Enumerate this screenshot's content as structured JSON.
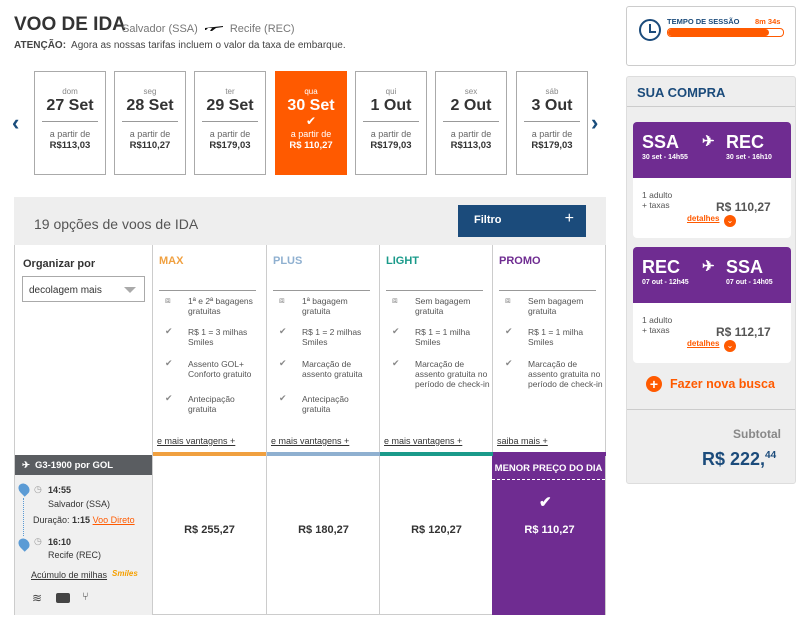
{
  "header": {
    "title": "VOO DE IDA",
    "origin": "Salvador (SSA)",
    "destination": "Recife (REC)",
    "notice_label": "ATENÇÃO:",
    "notice_text": "Agora as nossas tarifas incluem o valor da taxa de embarque."
  },
  "dates": [
    {
      "weekday": "dom",
      "date": "27 Set",
      "from": "a partir de",
      "price": "R$113,03"
    },
    {
      "weekday": "seg",
      "date": "28 Set",
      "from": "a partir de",
      "price": "R$110,27"
    },
    {
      "weekday": "ter",
      "date": "29 Set",
      "from": "a partir de",
      "price": "R$179,03"
    },
    {
      "weekday": "qua",
      "date": "30 Set",
      "from": "a partir de",
      "price": "R$ 110,27"
    },
    {
      "weekday": "qui",
      "date": "1 Out",
      "from": "a partir de",
      "price": "R$179,03"
    },
    {
      "weekday": "sex",
      "date": "2 Out",
      "from": "a partir de",
      "price": "R$113,03"
    },
    {
      "weekday": "sáb",
      "date": "3 Out",
      "from": "a partir de",
      "price": "R$179,03"
    }
  ],
  "options": {
    "count_text": "19 opções de voos de IDA",
    "filter_label": "Filtro",
    "filter_icon": "+"
  },
  "sort": {
    "label": "Organizar por",
    "value": "decolagem mais"
  },
  "fares": [
    {
      "name": "MAX",
      "color": "#f0a040",
      "features": [
        "1ª e 2ª bagagens gratuitas",
        "R$ 1 = 3 milhas Smiles",
        "Assento GOL+ Conforto gratuito",
        "Antecipação gratuita"
      ],
      "more": "e mais vantagens +",
      "price": "R$ 255,27"
    },
    {
      "name": "PLUS",
      "color": "#8fb0d0",
      "features": [
        "1ª bagagem gratuita",
        "R$ 1 = 2 milhas Smiles",
        "Marcação de assento gratuita",
        "Antecipação gratuita"
      ],
      "more": "e mais vantagens +",
      "price": "R$ 180,27"
    },
    {
      "name": "LIGHT",
      "color": "#1a9a8a",
      "features": [
        "Sem bagagem gratuita",
        "R$ 1 = 1 milha Smiles",
        "Marcação de assento gratuita no período de check-in"
      ],
      "more": "e mais vantagens +",
      "price": "R$ 120,27"
    },
    {
      "name": "PROMO",
      "color": "#6f2c91",
      "features": [
        "Sem bagagem gratuita",
        "R$ 1 = 1 milha Smiles",
        "Marcação de assento gratuita no período de check-in"
      ],
      "more": "saiba mais +",
      "price": "R$ 110,27",
      "badge": "MENOR PREÇO DO DIA"
    }
  ],
  "flight": {
    "header": "G3-1900 por GOL",
    "dep_time": "14:55",
    "dep_city": "Salvador (SSA)",
    "duration_label": "Duração:",
    "duration": "1:15",
    "type": "Voo Direto",
    "arr_time": "16:10",
    "arr_city": "Recife (REC)",
    "miles_link": "Acúmulo de milhas",
    "smiles": "Smiles"
  },
  "timer": {
    "label": "TEMPO DE SESSÃO",
    "value": "8m 34s",
    "fraction": 0.88
  },
  "cart": {
    "title": "SUA COMPRA",
    "legs": [
      {
        "from": "SSA",
        "to": "REC",
        "from_sub": "30 set - 14h55",
        "to_sub": "30 set - 16h10",
        "pax": "1 adulto",
        "tax": "+ taxas",
        "price": "R$ 110,27",
        "details": "detalhes"
      },
      {
        "from": "REC",
        "to": "SSA",
        "from_sub": "07 out - 12h45",
        "to_sub": "07 out - 14h05",
        "pax": "1 adulto",
        "tax": "+ taxas",
        "price": "R$ 112,17",
        "details": "detalhes"
      }
    ],
    "new_search": "Fazer nova busca",
    "subtotal_label": "Subtotal",
    "subtotal_main": "R$ 222,",
    "subtotal_cents": "44"
  }
}
